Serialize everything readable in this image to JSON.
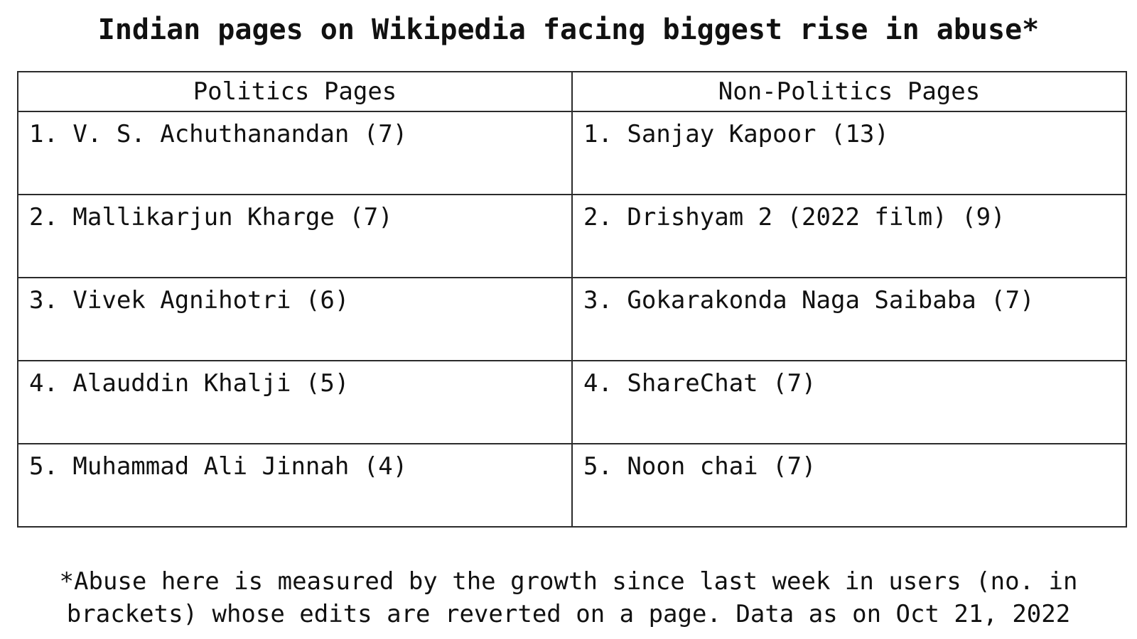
{
  "chart_data": {
    "type": "table",
    "title": "Indian pages on Wikipedia facing biggest rise in abuse*",
    "columns": [
      "Politics Pages",
      "Non-Politics Pages"
    ],
    "rows": [
      [
        "1. V. S. Achuthanandan (7)",
        "1. Sanjay Kapoor (13)"
      ],
      [
        "2. Mallikarjun Kharge (7)",
        "2. Drishyam 2 (2022 film) (9)"
      ],
      [
        "3. Vivek Agnihotri (6)",
        "3. Gokarakonda Naga Saibaba (7)"
      ],
      [
        "4. Alauddin Khalji (5)",
        "4. ShareChat (7)"
      ],
      [
        "5. Muhammad Ali Jinnah (4)",
        "5. Noon chai (7)"
      ]
    ],
    "footnote_lines": [
      "*Abuse here is measured by the growth since last week in users (no. in",
      "brackets) whose edits are reverted on a page. Data as on Oct 21, 2022"
    ]
  }
}
